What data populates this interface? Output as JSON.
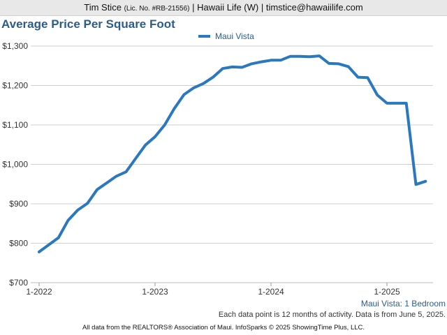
{
  "header": {
    "agent": "Tim Stice",
    "license": "(Lic. No. #RB-21556)",
    "rest": "| Hawaii Life (W) | timstice@hawaiilife.com"
  },
  "chart_data": {
    "type": "line",
    "title": "Average Price Per Square Foot",
    "subtitle": "Maui Vista: 1 Bedroom",
    "xlabel": "",
    "ylabel": "",
    "ylim": [
      700,
      1300
    ],
    "yticks": [
      700,
      800,
      900,
      1000,
      1100,
      1200,
      1300
    ],
    "ytick_labels": [
      "$700",
      "$800",
      "$900",
      "$1,000",
      "$1,100",
      "$1,200",
      "$1,300"
    ],
    "xticks": [
      "2022-01",
      "2023-01",
      "2024-01",
      "2025-01"
    ],
    "xtick_labels": [
      "1-2022",
      "1-2023",
      "1-2024",
      "1-2025"
    ],
    "grid": true,
    "legend_position": "top-center",
    "color": "#2a78be",
    "series": [
      {
        "name": "Maui Vista",
        "x": [
          "2022-01",
          "2022-02",
          "2022-03",
          "2022-04",
          "2022-05",
          "2022-06",
          "2022-07",
          "2022-08",
          "2022-09",
          "2022-10",
          "2022-11",
          "2022-12",
          "2023-01",
          "2023-02",
          "2023-03",
          "2023-04",
          "2023-05",
          "2023-06",
          "2023-07",
          "2023-08",
          "2023-09",
          "2023-10",
          "2023-11",
          "2023-12",
          "2024-01",
          "2024-02",
          "2024-03",
          "2024-04",
          "2024-05",
          "2024-06",
          "2024-07",
          "2024-08",
          "2024-09",
          "2024-10",
          "2024-11",
          "2024-12",
          "2025-01",
          "2025-02",
          "2025-03",
          "2025-04",
          "2025-05"
        ],
        "values": [
          778,
          796,
          814,
          858,
          884,
          901,
          936,
          953,
          970,
          981,
          1015,
          1049,
          1070,
          1100,
          1142,
          1177,
          1194,
          1205,
          1221,
          1243,
          1247,
          1246,
          1255,
          1260,
          1264,
          1264,
          1274,
          1274,
          1273,
          1275,
          1256,
          1255,
          1248,
          1221,
          1220,
          1176,
          1155,
          1155,
          1155,
          949,
          957
        ]
      }
    ]
  },
  "note": "Each data point is 12 months of activity. Data is from June 5, 2025.",
  "footer": "All data from the REALTORS® Association of Maui. InfoSparks © 2025 ShowingTime Plus, LLC."
}
